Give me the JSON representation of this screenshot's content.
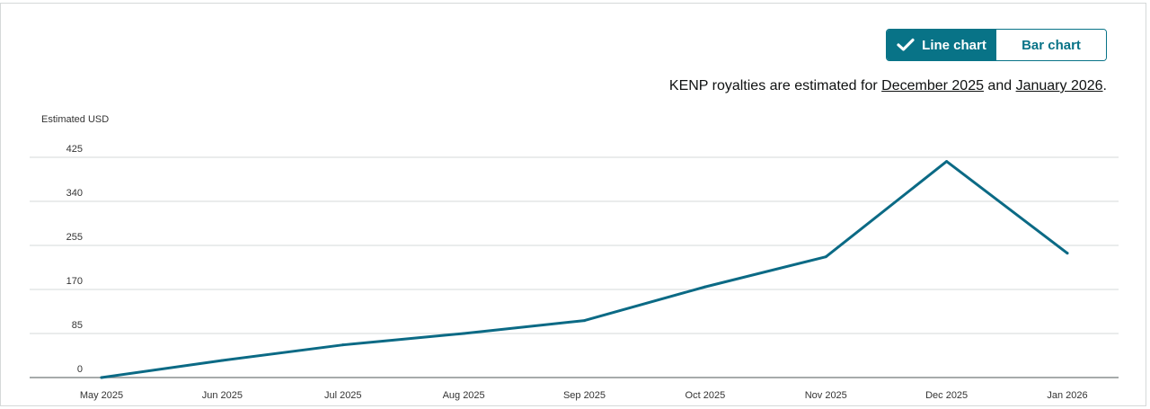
{
  "toggle": {
    "line_label": "Line chart",
    "bar_label": "Bar chart",
    "active": "line"
  },
  "note": {
    "prefix": "KENP royalties are estimated for ",
    "link1": "December 2025",
    "middle": " and ",
    "link2": "January 2026",
    "suffix": "."
  },
  "colors": {
    "accent": "#087387",
    "line": "#0b6a85",
    "grid": "#d5d9d9"
  },
  "chart_data": {
    "type": "line",
    "ylabel": "Estimated USD",
    "xlabel": "",
    "categories": [
      "May 2025",
      "Jun 2025",
      "Jul 2025",
      "Aug 2025",
      "Sep 2025",
      "Oct 2025",
      "Nov 2025",
      "Dec 2025",
      "Jan 2026"
    ],
    "y_ticks": [
      0,
      85,
      170,
      255,
      340,
      425
    ],
    "ylim": [
      0,
      425
    ],
    "grid": true,
    "series": [
      {
        "values": [
          0,
          33,
          63,
          85,
          110,
          175,
          233,
          417,
          240
        ]
      }
    ]
  }
}
